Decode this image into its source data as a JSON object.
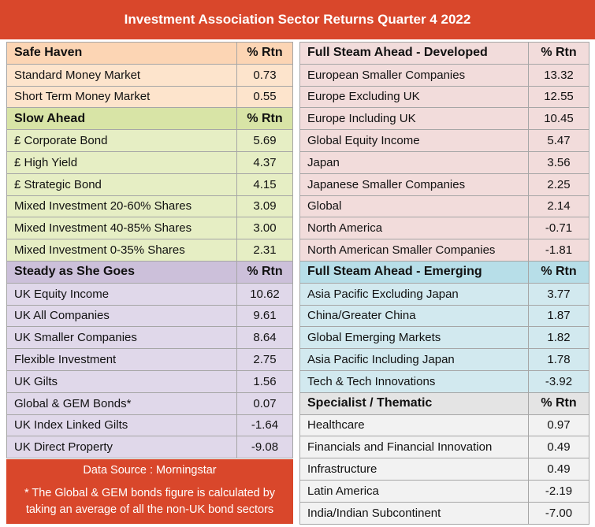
{
  "title": "Investment Association Sector Returns Quarter 4 2022",
  "left_sections": [
    {
      "name": "Safe Haven",
      "rtn_header": "% Rtn",
      "rows": [
        [
          "Standard Money Market",
          "0.73"
        ],
        [
          "Short Term Money Market",
          "0.55"
        ]
      ]
    },
    {
      "name": "Slow Ahead",
      "rtn_header": "% Rtn",
      "rows": [
        [
          "£ Corporate Bond",
          "5.69"
        ],
        [
          "£ High Yield",
          "4.37"
        ],
        [
          "£ Strategic Bond",
          "4.15"
        ],
        [
          "Mixed Investment 20-60% Shares",
          "3.09"
        ],
        [
          "Mixed Investment 40-85% Shares",
          "3.00"
        ],
        [
          "Mixed Investment 0-35% Shares",
          "2.31"
        ]
      ]
    },
    {
      "name": "Steady as She Goes",
      "rtn_header": "% Rtn",
      "rows": [
        [
          "UK Equity Income",
          "10.62"
        ],
        [
          "UK All Companies",
          "9.61"
        ],
        [
          "UK Smaller Companies",
          "8.64"
        ],
        [
          "Flexible Investment",
          "2.75"
        ],
        [
          "UK Gilts",
          "1.56"
        ],
        [
          "Global & GEM Bonds*",
          "0.07"
        ],
        [
          "UK Index Linked Gilts",
          "-1.64"
        ],
        [
          "UK Direct Property",
          "-9.08"
        ]
      ]
    }
  ],
  "right_sections": [
    {
      "name": "Full Steam Ahead - Developed",
      "rtn_header": "% Rtn",
      "rows": [
        [
          "European Smaller Companies",
          "13.32"
        ],
        [
          "Europe Excluding UK",
          "12.55"
        ],
        [
          "Europe Including UK",
          "10.45"
        ],
        [
          "Global Equity Income",
          "5.47"
        ],
        [
          "Japan",
          "3.56"
        ],
        [
          "Japanese Smaller Companies",
          "2.25"
        ],
        [
          "Global",
          "2.14"
        ],
        [
          "North America",
          "-0.71"
        ],
        [
          "North American Smaller Companies",
          "-1.81"
        ]
      ]
    },
    {
      "name": "Full Steam Ahead - Emerging",
      "rtn_header": "% Rtn",
      "rows": [
        [
          "Asia Pacific Excluding Japan",
          "3.77"
        ],
        [
          "China/Greater China",
          "1.87"
        ],
        [
          "Global Emerging Markets",
          "1.82"
        ],
        [
          "Asia Pacific Including Japan",
          "1.78"
        ],
        [
          "Tech & Tech Innovations",
          "-3.92"
        ]
      ]
    },
    {
      "name": "Specialist / Thematic",
      "rtn_header": "% Rtn",
      "rows": [
        [
          "Healthcare",
          "0.97"
        ],
        [
          "Financials and Financial Innovation",
          "0.49"
        ],
        [
          "Infrastructure",
          "0.49"
        ],
        [
          "Latin America",
          "-2.19"
        ],
        [
          "India/Indian Subcontinent",
          "-7.00"
        ]
      ]
    }
  ],
  "footer": {
    "source": "Data Source : Morningstar",
    "note": "* The Global & GEM bonds figure is calculated by taking an average of all the non-UK bond sectors"
  }
}
